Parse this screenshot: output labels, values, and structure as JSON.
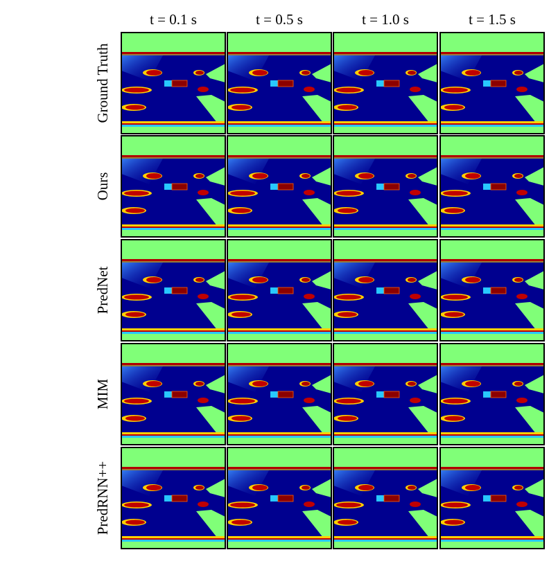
{
  "figure": {
    "columns": [
      "t = 0.1 s",
      "t = 0.5 s",
      "t = 1.0 s",
      "t = 1.5 s"
    ],
    "rows": [
      "Ground Truth",
      "Ours",
      "PredNet",
      "MIM",
      "PredRNN++"
    ]
  }
}
